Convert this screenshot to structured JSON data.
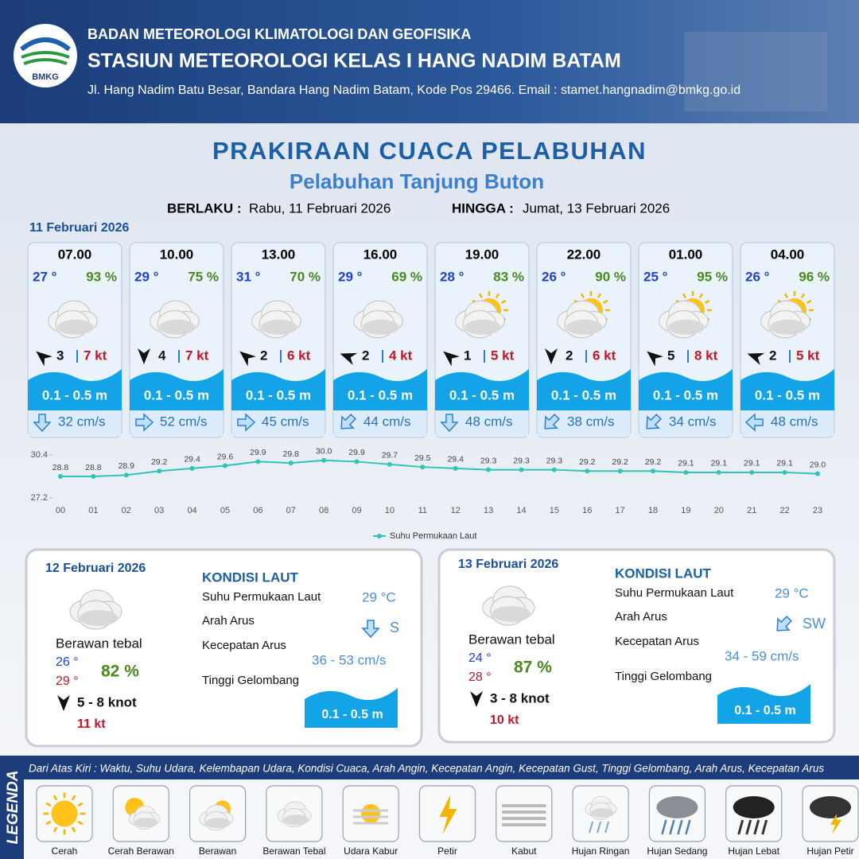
{
  "header": {
    "logo_text": "BMKG",
    "agency": "BADAN METEOROLOGI KLIMATOLOGI DAN GEOFISIKA",
    "station": "STASIUN METEOROLOGI KELAS I HANG NADIM BATAM",
    "address": "Jl. Hang Nadim Batu Besar, Bandara Hang Nadim Batam, Kode Pos 29466. Email : stamet.hangnadim@bmkg.go.id"
  },
  "title": "PRAKIRAAN CUACA PELABUHAN",
  "subtitle": "Pelabuhan Tanjung Buton",
  "validity": {
    "from_label": "BERLAKU :",
    "from": "Rabu, 11 Februari 2026",
    "to_label": "HINGGA :",
    "to": "Jumat, 13 Februari 2026"
  },
  "day1_date": "11 Februari 2026",
  "forecasts": [
    {
      "time": "07.00",
      "temp": "27 °",
      "humidity": "93 %",
      "wind": "3",
      "gust": "7 kt",
      "wave": "0.1 - 0.5 m",
      "current": "32 cm/s"
    },
    {
      "time": "10.00",
      "temp": "29 °",
      "humidity": "75 %",
      "wind": "4",
      "gust": "7 kt",
      "wave": "0.1 - 0.5 m",
      "current": "52 cm/s"
    },
    {
      "time": "13.00",
      "temp": "31 °",
      "humidity": "70 %",
      "wind": "2",
      "gust": "6 kt",
      "wave": "0.1 - 0.5 m",
      "current": "45 cm/s"
    },
    {
      "time": "16.00",
      "temp": "29 °",
      "humidity": "69 %",
      "wind": "2",
      "gust": "4 kt",
      "wave": "0.1 - 0.5 m",
      "current": "44 cm/s"
    },
    {
      "time": "19.00",
      "temp": "28 °",
      "humidity": "83 %",
      "wind": "1",
      "gust": "5 kt",
      "wave": "0.1 - 0.5 m",
      "current": "48 cm/s"
    },
    {
      "time": "22.00",
      "temp": "26 °",
      "humidity": "90 %",
      "wind": "2",
      "gust": "6 kt",
      "wave": "0.1 - 0.5 m",
      "current": "38 cm/s"
    },
    {
      "time": "01.00",
      "temp": "25 °",
      "humidity": "95 %",
      "wind": "5",
      "gust": "8 kt",
      "wave": "0.1 - 0.5 m",
      "current": "34 cm/s"
    },
    {
      "time": "04.00",
      "temp": "26 °",
      "humidity": "96 %",
      "wind": "2",
      "gust": "5 kt",
      "wave": "0.1 - 0.5 m",
      "current": "48 cm/s"
    }
  ],
  "sst_chart": {
    "type": "line",
    "categories": [
      "00",
      "01",
      "02",
      "03",
      "04",
      "05",
      "06",
      "07",
      "08",
      "09",
      "10",
      "11",
      "12",
      "13",
      "14",
      "15",
      "16",
      "17",
      "18",
      "19",
      "20",
      "21",
      "22",
      "23"
    ],
    "series": [
      {
        "name": "Suhu Permukaan Laut",
        "color": "#2ec4b6",
        "values": [
          28.8,
          28.8,
          28.9,
          29.2,
          29.4,
          29.6,
          29.9,
          29.8,
          30.0,
          29.9,
          29.7,
          29.5,
          29.4,
          29.3,
          29.3,
          29.3,
          29.2,
          29.2,
          29.2,
          29.1,
          29.1,
          29.1,
          29.1,
          29.0
        ],
        "value_labels": [
          "28.8",
          "28.8",
          "28.9",
          "29.2",
          "29.4",
          "29.6",
          "29.9",
          "29.8",
          "30.0",
          "29.9",
          "29.7",
          "29.5",
          "29.4",
          "29.3",
          "29.3",
          "29.3",
          "29.2",
          "29.2",
          "29.2",
          "29.1",
          "29.1",
          "29.1",
          "29.1",
          "29.0"
        ]
      }
    ],
    "ylim": [
      27.2,
      30.4
    ],
    "yticks": [
      27.2,
      30.4
    ]
  },
  "days": [
    {
      "date": "12 Februari 2026",
      "condition": "Berawan tebal",
      "temp_min": "26 °",
      "temp_max": "29 °",
      "humidity": "82 %",
      "wind": "5  - 8 knot",
      "gust": "11 kt",
      "sea_heading": "KONDISI LAUT",
      "sst_label": "Suhu Permukaan Laut",
      "sst": "29 °C",
      "current_dir_label": "Arah Arus",
      "current_dir": "S",
      "current_speed_label": "Kecepatan Arus",
      "current_speed": "36  - 53 cm/s",
      "wave_label": "Tinggi Gelombang",
      "wave": "0.1 - 0.5 m"
    },
    {
      "date": "13 Februari 2026",
      "condition": "Berawan tebal",
      "temp_min": "24 °",
      "temp_max": "28 °",
      "humidity": "87 %",
      "wind": "3  - 8 knot",
      "gust": "10 kt",
      "sea_heading": "KONDISI LAUT",
      "sst_label": "Suhu Permukaan Laut",
      "sst": "29 °C",
      "current_dir_label": "Arah Arus",
      "current_dir": "SW",
      "current_speed_label": "Kecepatan Arus",
      "current_speed": "34  - 59 cm/s",
      "wave_label": "Tinggi Gelombang",
      "wave": "0.1 - 0.5 m"
    }
  ],
  "legend": {
    "title": "LEGENDA",
    "description": "Dari Atas Kiri : Waktu, Suhu Udara, Kelembapan Udara, Kondisi Cuaca, Arah Angin, Kecepatan Angin, Kecepatan Gust, Tinggi Gelombang, Arah Arus, Kecepatan Arus",
    "items": [
      "Cerah",
      "Cerah Berawan",
      "Berawan",
      "Berawan Tebal",
      "Udara Kabur",
      "Petir",
      "Kabut",
      "Hujan Ringan",
      "Hujan Sedang",
      "Hujan Lebat",
      "Hujan Petir"
    ]
  }
}
